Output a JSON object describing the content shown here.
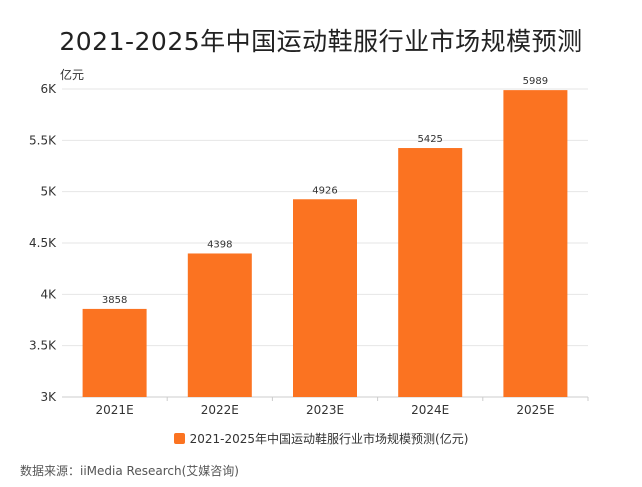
{
  "colors": {
    "bar": "#fb7321",
    "grid": "#e6e6e6",
    "axis": "#cccccc",
    "text": "#333333"
  },
  "chart_data": {
    "type": "bar",
    "title": "2021-2025年中国运动鞋服行业市场规模预测",
    "ylabel": "亿元",
    "categories": [
      "2021E",
      "2022E",
      "2023E",
      "2024E",
      "2025E"
    ],
    "series": [
      {
        "name": "2021-2025年中国运动鞋服行业市场规模预测(亿元)",
        "values": [
          3858,
          4398,
          4926,
          5425,
          5989
        ]
      }
    ],
    "ylim": [
      3000,
      6000
    ],
    "yticks": [
      3000,
      3500,
      4000,
      4500,
      5000,
      5500,
      6000
    ],
    "ytick_labels": [
      "3K",
      "3.5K",
      "4K",
      "4.5K",
      "5K",
      "5.5K",
      "6K"
    ],
    "legend_position": "bottom",
    "grid": true
  },
  "source": "数据来源：iiMedia Research(艾媒咨询)"
}
